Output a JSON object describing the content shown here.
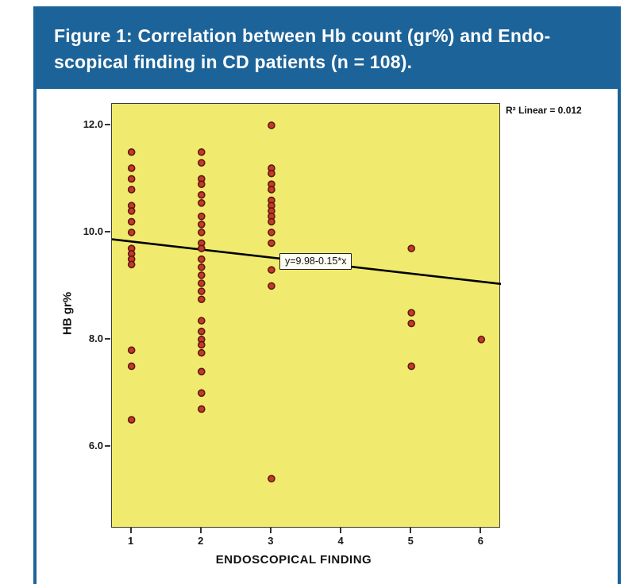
{
  "figure": {
    "title_lines": [
      "Figure 1: Correlation between Hb count (gr%) and Endo-",
      "scopical finding in CD patients (n = 108)."
    ]
  },
  "colors": {
    "header_blue": "#1c6399",
    "plot_bg": "#f0eb6e",
    "point_fill": "#c23b2a",
    "point_stroke": "#5f170c",
    "line_color": "#000000"
  },
  "chart_data": {
    "type": "scatter",
    "title": "Correlation between Hb count (gr%) and Endoscopical finding in CD patients (n = 108)",
    "xlabel": "ENDOSCOPICAL FINDING",
    "ylabel": "HB gr%",
    "xlim": [
      0.72,
      6.28
    ],
    "ylim": [
      4.47,
      12.4
    ],
    "x_ticks": [
      {
        "label": "1",
        "value": 1
      },
      {
        "label": "2",
        "value": 2
      },
      {
        "label": "3",
        "value": 3
      },
      {
        "label": "4",
        "value": 4
      },
      {
        "label": "5",
        "value": 5
      },
      {
        "label": "6",
        "value": 6
      }
    ],
    "y_ticks": [
      {
        "label": "6.0",
        "value": 6.0
      },
      {
        "label": "8.0",
        "value": 8.0
      },
      {
        "label": "10.0",
        "value": 10.0
      },
      {
        "label": "12.0",
        "value": 12.0
      }
    ],
    "r2_label": "R² Linear = 0.012",
    "regression": {
      "equation_label": "y=9.98-0.15*x",
      "intercept": 9.98,
      "slope": -0.15
    },
    "points": [
      [
        1,
        11.5
      ],
      [
        1,
        11.2
      ],
      [
        1,
        11.0
      ],
      [
        1,
        10.8
      ],
      [
        1,
        10.5
      ],
      [
        1,
        10.4
      ],
      [
        1,
        10.2
      ],
      [
        1,
        10.0
      ],
      [
        1,
        9.7
      ],
      [
        1,
        9.6
      ],
      [
        1,
        9.5
      ],
      [
        1,
        9.4
      ],
      [
        1,
        7.8
      ],
      [
        1,
        7.5
      ],
      [
        1,
        6.5
      ],
      [
        2,
        11.5
      ],
      [
        2,
        11.3
      ],
      [
        2,
        11.0
      ],
      [
        2,
        10.9
      ],
      [
        2,
        10.7
      ],
      [
        2,
        10.55
      ],
      [
        2,
        10.3
      ],
      [
        2,
        10.15
      ],
      [
        2,
        10.0
      ],
      [
        2,
        9.8
      ],
      [
        2,
        9.7
      ],
      [
        2,
        9.5
      ],
      [
        2,
        9.35
      ],
      [
        2,
        9.2
      ],
      [
        2,
        9.05
      ],
      [
        2,
        8.9
      ],
      [
        2,
        8.75
      ],
      [
        2,
        8.35
      ],
      [
        2,
        8.15
      ],
      [
        2,
        8.0
      ],
      [
        2,
        7.9
      ],
      [
        2,
        7.75
      ],
      [
        2,
        7.4
      ],
      [
        2,
        7.0
      ],
      [
        2,
        6.7
      ],
      [
        3,
        12.0
      ],
      [
        3,
        11.2
      ],
      [
        3,
        11.1
      ],
      [
        3,
        10.9
      ],
      [
        3,
        10.8
      ],
      [
        3,
        10.6
      ],
      [
        3,
        10.5
      ],
      [
        3,
        10.4
      ],
      [
        3,
        10.3
      ],
      [
        3,
        10.2
      ],
      [
        3,
        10.0
      ],
      [
        3,
        9.8
      ],
      [
        3,
        9.3
      ],
      [
        3,
        9.0
      ],
      [
        3,
        5.4
      ],
      [
        5,
        9.7
      ],
      [
        5,
        8.5
      ],
      [
        5,
        8.3
      ],
      [
        5,
        7.5
      ],
      [
        6,
        8.0
      ]
    ]
  }
}
